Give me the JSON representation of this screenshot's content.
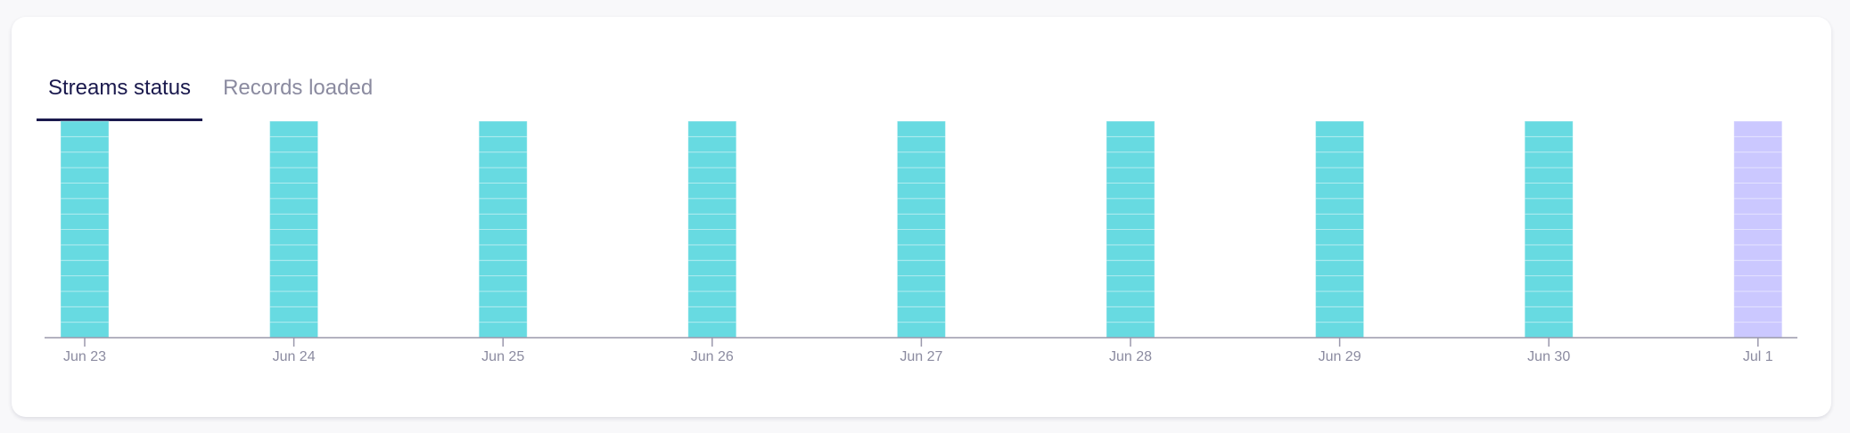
{
  "tabs": [
    {
      "label": "Streams status",
      "active": true
    },
    {
      "label": "Records loaded",
      "active": false
    }
  ],
  "colors": {
    "succeeded": "#67dae1",
    "pending": "#cbc8ff",
    "segment_line": "#a6ebee",
    "axis": "#9a98ac",
    "active_tab": "#1a194d"
  },
  "chart_data": {
    "type": "bar",
    "stacked": true,
    "categories": [
      "Jun 23",
      "Jun 24",
      "Jun 25",
      "Jun 26",
      "Jun 27",
      "Jun 28",
      "Jun 29",
      "Jun 30",
      "Jul 1"
    ],
    "values": [
      14,
      14,
      14,
      14,
      14,
      14,
      14,
      14,
      14
    ],
    "bar_status": [
      "succeeded",
      "succeeded",
      "succeeded",
      "succeeded",
      "succeeded",
      "succeeded",
      "succeeded",
      "succeeded",
      "pending"
    ],
    "ylim": [
      0,
      14
    ],
    "grid": false,
    "title": "",
    "xlabel": "",
    "ylabel": ""
  }
}
